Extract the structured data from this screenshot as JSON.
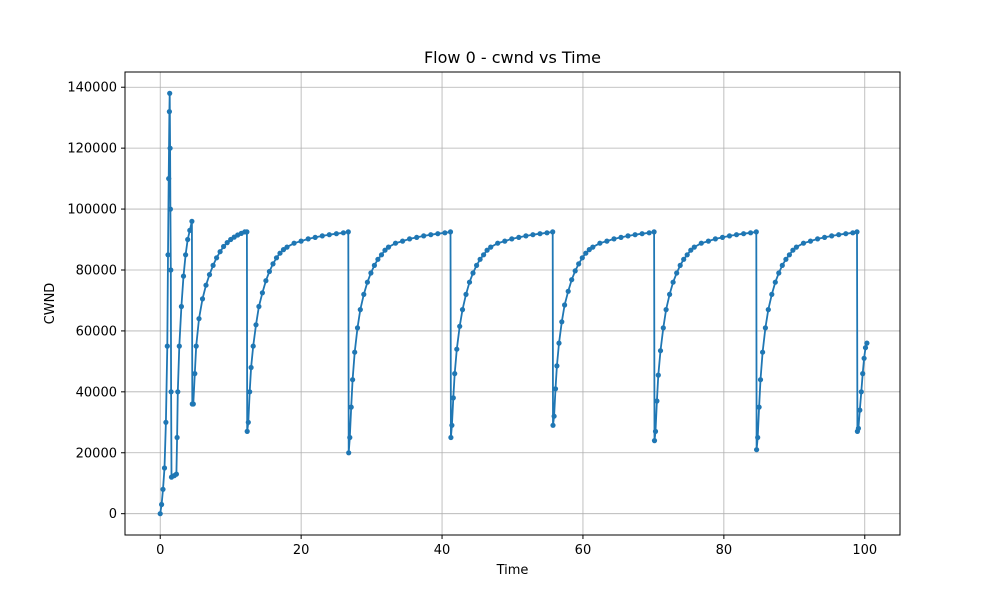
{
  "chart_data": {
    "type": "line",
    "title": "Flow 0 - cwnd vs Time",
    "xlabel": "Time",
    "ylabel": "CWND",
    "xlim": [
      -5,
      105
    ],
    "ylim": [
      -7000,
      145000
    ],
    "x_ticks": [
      0,
      20,
      40,
      60,
      80,
      100
    ],
    "y_ticks": [
      0,
      20000,
      40000,
      60000,
      80000,
      100000,
      120000,
      140000
    ],
    "grid": true,
    "marker": "circle",
    "line_color": "#1f77b4",
    "series": [
      {
        "x": [
          0,
          0.2,
          0.4,
          0.6,
          0.8,
          1.0,
          1.1,
          1.2,
          1.3,
          1.35,
          1.4,
          1.45,
          1.5,
          1.55,
          1.6,
          2.0,
          2.3,
          2.4,
          2.5,
          2.7,
          3.0,
          3.3,
          3.6,
          3.9,
          4.2,
          4.5,
          4.55,
          4.7,
          4.9,
          5.1,
          5.5,
          6.0,
          6.5,
          7.0,
          7.5,
          8.0,
          8.5,
          9.0,
          9.5,
          10.0,
          10.5,
          11.0,
          11.5,
          12.0,
          12.3,
          12.35,
          12.5,
          12.7,
          12.9,
          13.2,
          13.6,
          14.0,
          14.5,
          15.0,
          15.5,
          16.0,
          16.5,
          17.0,
          17.5,
          18.0,
          19.0,
          20.0,
          21.0,
          22.0,
          23.0,
          24.0,
          25.0,
          26.0,
          26.7,
          26.75,
          26.9,
          27.1,
          27.3,
          27.6,
          28.0,
          28.4,
          28.9,
          29.4,
          29.9,
          30.4,
          30.9,
          31.4,
          31.9,
          32.4,
          33.4,
          34.4,
          35.4,
          36.4,
          37.4,
          38.4,
          39.4,
          40.4,
          41.2,
          41.25,
          41.4,
          41.6,
          41.8,
          42.1,
          42.5,
          42.9,
          43.4,
          43.9,
          44.4,
          44.9,
          45.4,
          45.9,
          46.4,
          46.9,
          47.9,
          48.9,
          49.9,
          50.9,
          51.9,
          52.9,
          53.9,
          54.9,
          55.7,
          55.75,
          55.9,
          56.1,
          56.3,
          56.6,
          57.0,
          57.4,
          57.9,
          58.4,
          58.9,
          59.4,
          59.9,
          60.4,
          60.9,
          61.4,
          62.4,
          63.4,
          64.4,
          65.4,
          66.4,
          67.4,
          68.4,
          69.4,
          70.1,
          70.15,
          70.3,
          70.5,
          70.7,
          71.0,
          71.4,
          71.8,
          72.3,
          72.8,
          73.3,
          73.8,
          74.3,
          74.8,
          75.3,
          75.8,
          76.8,
          77.8,
          78.8,
          79.8,
          80.8,
          81.8,
          82.8,
          83.8,
          84.6,
          84.65,
          84.8,
          85.0,
          85.2,
          85.5,
          85.9,
          86.3,
          86.8,
          87.3,
          87.8,
          88.3,
          88.8,
          89.3,
          89.8,
          90.3,
          91.3,
          92.3,
          93.3,
          94.3,
          95.3,
          96.3,
          97.3,
          98.3,
          98.9,
          98.95,
          99.1,
          99.3,
          99.5,
          99.7,
          99.9,
          100.1,
          100.3
        ],
        "y": [
          0,
          3000,
          8000,
          15000,
          30000,
          55000,
          85000,
          110000,
          132000,
          138000,
          120000,
          100000,
          80000,
          40000,
          12000,
          12500,
          13000,
          25000,
          40000,
          55000,
          68000,
          78000,
          85000,
          90000,
          93000,
          96000,
          36000,
          36000,
          46000,
          55000,
          64000,
          70500,
          75000,
          78500,
          81500,
          84000,
          86000,
          87700,
          89000,
          90000,
          90800,
          91500,
          92000,
          92500,
          92500,
          27000,
          30000,
          40000,
          48000,
          55000,
          62000,
          68000,
          72500,
          76500,
          79500,
          82000,
          84000,
          85500,
          86700,
          87500,
          88800,
          89500,
          90200,
          90700,
          91200,
          91600,
          91900,
          92200,
          92500,
          20000,
          25000,
          35000,
          44000,
          53000,
          61000,
          67000,
          72000,
          76000,
          79000,
          81500,
          83500,
          85000,
          86500,
          87500,
          88800,
          89500,
          90200,
          90700,
          91200,
          91600,
          91900,
          92200,
          92500,
          25000,
          29000,
          38000,
          46000,
          54000,
          61500,
          67000,
          72000,
          76000,
          79000,
          81500,
          83500,
          85000,
          86500,
          87500,
          88800,
          89500,
          90200,
          90700,
          91200,
          91600,
          91900,
          92200,
          92500,
          29000,
          32000,
          41000,
          48500,
          56000,
          63000,
          68500,
          73000,
          76800,
          79700,
          82000,
          84000,
          85500,
          86700,
          87500,
          88800,
          89500,
          90200,
          90700,
          91200,
          91600,
          91900,
          92200,
          92500,
          24000,
          27000,
          37000,
          45500,
          53500,
          61000,
          67000,
          72000,
          76000,
          79000,
          81500,
          83500,
          85000,
          86500,
          87500,
          88800,
          89500,
          90200,
          90700,
          91200,
          91600,
          91900,
          92200,
          92500,
          21000,
          25000,
          35000,
          44000,
          53000,
          61000,
          67000,
          72000,
          76000,
          79000,
          81500,
          83500,
          85000,
          86500,
          87500,
          88800,
          89500,
          90200,
          90700,
          91200,
          91600,
          91900,
          92200,
          92500,
          27000,
          28000,
          34000,
          40000,
          46000,
          51000,
          54500,
          56000
        ]
      }
    ]
  }
}
